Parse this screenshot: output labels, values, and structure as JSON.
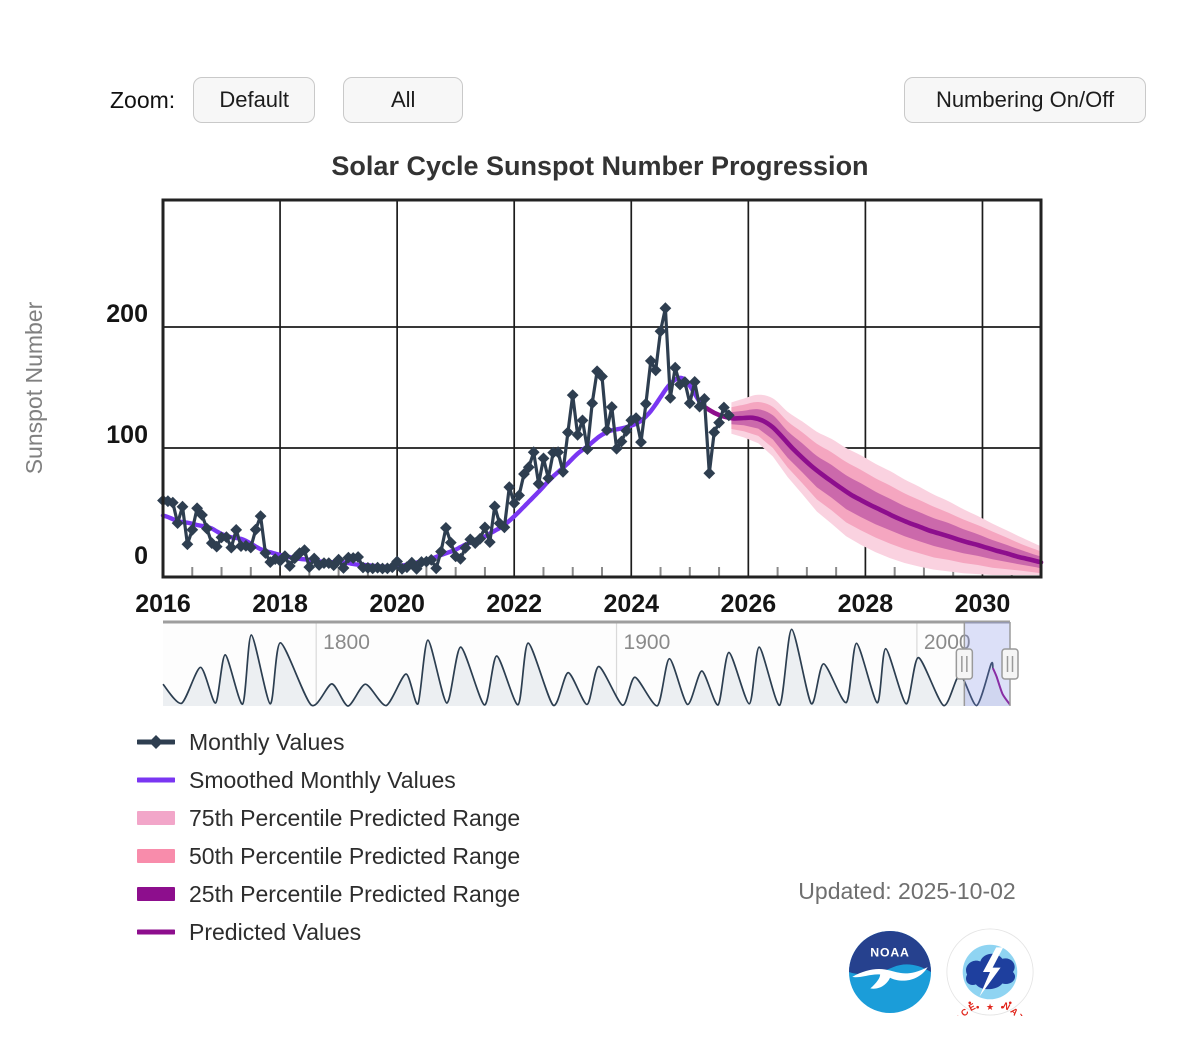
{
  "controls": {
    "zoom_label": "Zoom:",
    "zoom_buttons": [
      "Default",
      "All"
    ],
    "numbering_button": "Numbering On/Off"
  },
  "chart_data": {
    "type": "line",
    "title": "Solar Cycle Sunspot Number Progression",
    "xlabel": "",
    "ylabel": "Sunspot Number",
    "xlim": [
      2016,
      2031
    ],
    "ylim": [
      -7,
      305
    ],
    "x_ticks": [
      2016,
      2018,
      2020,
      2022,
      2024,
      2026,
      2028,
      2030
    ],
    "y_ticks": [
      0,
      100,
      200
    ],
    "minor_tick_step_years": 0.5,
    "grid": true,
    "series": {
      "monthly": {
        "name": "Monthly Values",
        "color": "#2e3e50",
        "start": 2016.0,
        "step_years": 0.0833333,
        "values": [
          56.6,
          56,
          54.9,
          37.9,
          51.5,
          20.5,
          32.4,
          50.2,
          44.6,
          33.4,
          21.4,
          18.5,
          26.1,
          26.4,
          17.7,
          32.3,
          18.9,
          19.2,
          17.8,
          32.6,
          43.7,
          13.2,
          5.7,
          8.2,
          6.8,
          10.7,
          2.5,
          8.9,
          13.1,
          15.6,
          1.6,
          8.7,
          3.3,
          4.9,
          4.9,
          3.1,
          7.7,
          0.8,
          9.4,
          9.1,
          9.9,
          1.2,
          0.9,
          0.5,
          1.1,
          0.4,
          0.5,
          1.5,
          6.2,
          0.2,
          1.5,
          5.2,
          0.2,
          5.8,
          6.1,
          7.5,
          0.6,
          14.4,
          34,
          21.8,
          10.4,
          8.4,
          17.4,
          24.5,
          21.4,
          25,
          34.4,
          22.2,
          51.7,
          37.7,
          34.5,
          67.7,
          54.3,
          60.8,
          78.5,
          84.1,
          96.5,
          70.5,
          91.4,
          75,
          96.2,
          96.5,
          80.3,
          112.9,
          143.7,
          110.9,
          122.8,
          99.1,
          137,
          163.4,
          159.1,
          114.8,
          133.9,
          99.4,
          105.4,
          114.2,
          123,
          124.7,
          104.9,
          136.5,
          172,
          164.2,
          196.5,
          215.5,
          141.4,
          166.4,
          152.5,
          154.5,
          137,
          154.6,
          134.2,
          140.6,
          79.2,
          113,
          121,
          133.5,
          127
        ]
      },
      "smoothed": {
        "name": "Smoothed Monthly Values",
        "color": "#7a36f2",
        "start": 2016.0,
        "step_years": 0.0833333,
        "values": [
          44.2,
          43,
          41.2,
          39.4,
          38.8,
          38.3,
          37.4,
          36.4,
          35.6,
          34.8,
          33.5,
          31.1,
          28.9,
          27.4,
          26.2,
          25.6,
          24.9,
          23.2,
          21,
          18.6,
          16.4,
          14.8,
          13.8,
          12.7,
          11.6,
          10.6,
          9.8,
          8.9,
          8.4,
          8,
          7.6,
          7,
          6.4,
          6,
          5.7,
          5.6,
          5.6,
          5.4,
          4.9,
          4.1,
          3.5,
          3.3,
          3.1,
          2.7,
          2.3,
          2,
          1.8,
          1.8,
          2.1,
          2.8,
          3.6,
          4.5,
          5.4,
          6.1,
          7,
          8.3,
          10,
          11.6,
          13,
          14.4,
          16,
          18.1,
          20.1,
          21.7,
          23,
          24.6,
          26.8,
          29.3,
          31.6,
          33.8,
          36.6,
          39.8,
          43.5,
          47.4,
          51.5,
          55.6,
          59.7,
          63.8,
          68.1,
          72.5,
          76.5,
          80.2,
          83.6,
          87.3,
          91.4,
          95.3,
          98.4,
          101.3,
          104.7,
          108.1,
          110.9,
          113.1,
          114.6,
          115.4,
          116.2,
          117.2,
          118.5,
          120.2,
          122.5,
          126,
          130.5,
          136,
          142,
          148,
          153,
          156.5,
          158,
          156.5,
          151.5,
          145,
          138.5,
          134
        ]
      },
      "predicted": {
        "name": "Predicted Values",
        "color": "#8d0e8d",
        "points": [
          [
            2025.25,
            134
          ],
          [
            2025.42,
            129
          ],
          [
            2025.58,
            126
          ],
          [
            2025.75,
            124.5
          ],
          [
            2025.92,
            124.8
          ],
          [
            2026.08,
            125
          ],
          [
            2026.25,
            122.5
          ],
          [
            2026.42,
            117
          ],
          [
            2026.58,
            109
          ],
          [
            2026.75,
            100
          ],
          [
            2026.92,
            92
          ],
          [
            2027.08,
            85
          ],
          [
            2027.25,
            78.5
          ],
          [
            2027.42,
            72.5
          ],
          [
            2027.58,
            67
          ],
          [
            2027.75,
            61.5
          ],
          [
            2027.92,
            57
          ],
          [
            2028.08,
            53
          ],
          [
            2028.25,
            49
          ],
          [
            2028.42,
            45
          ],
          [
            2028.58,
            41.5
          ],
          [
            2028.75,
            38
          ],
          [
            2028.92,
            35
          ],
          [
            2029.08,
            32
          ],
          [
            2029.25,
            29.5
          ],
          [
            2029.42,
            27
          ],
          [
            2029.58,
            24.5
          ],
          [
            2029.75,
            22
          ],
          [
            2029.92,
            19.8
          ],
          [
            2030.08,
            17.5
          ],
          [
            2030.25,
            15
          ],
          [
            2030.42,
            12.8
          ],
          [
            2030.58,
            10.5
          ],
          [
            2030.75,
            8.5
          ],
          [
            2030.92,
            6.5
          ],
          [
            2031,
            5.5
          ]
        ]
      },
      "bands": {
        "x": [
          2025.71,
          2025.92,
          2026.17,
          2026.42,
          2026.67,
          2026.92,
          2027.17,
          2027.42,
          2027.67,
          2027.92,
          2028.17,
          2028.42,
          2028.67,
          2028.92,
          2029.17,
          2029.42,
          2029.67,
          2029.92,
          2030.17,
          2030.42,
          2030.67,
          2030.92,
          2031
        ],
        "median": [
          124.7,
          124.8,
          124,
          117,
          103,
          92,
          80.5,
          72.5,
          63.5,
          57,
          50.5,
          45,
          39.5,
          35,
          30.5,
          27,
          23,
          19.8,
          16,
          12.8,
          9.5,
          6.5,
          5.5
        ],
        "p25": {
          "name": "25th Percentile Predicted Range",
          "fill": "rgba(141,14,141,0.40)",
          "halfwidth": [
            5,
            6,
            8,
            10,
            11,
            12,
            13,
            13.5,
            14,
            14,
            13.5,
            13,
            12.5,
            12,
            11.5,
            11,
            10,
            9,
            8,
            7,
            6,
            5,
            5
          ]
        },
        "p50": {
          "name": "50th Percentile Predicted Range",
          "fill": "#f5a6c0",
          "halfwidth": [
            9,
            11,
            14,
            17,
            19,
            21,
            23,
            24,
            25,
            25,
            24.5,
            24,
            23,
            22,
            21,
            19.5,
            18,
            16.5,
            15,
            13,
            11,
            9.5,
            9
          ]
        },
        "p75": {
          "name": "75th Percentile Predicted Range",
          "fill": "#fad2e0",
          "halfwidth": [
            13,
            16,
            20,
            24,
            27,
            30,
            33,
            35,
            36.5,
            37,
            36.5,
            36,
            34.5,
            33,
            31,
            29,
            26.5,
            24,
            21.5,
            19,
            16.5,
            14,
            13.5
          ]
        },
        "lower_clamp": -5
      }
    },
    "navigator": {
      "xlim": [
        1749,
        2031
      ],
      "grid_years": [
        1800,
        1900,
        2000
      ],
      "grid_labels": [
        "1800",
        "1900",
        "2000"
      ],
      "selection": [
        2015.8,
        2031
      ],
      "prediction_from": 2025.3,
      "line_color": "#2c3e50",
      "prediction_color": "#8d0e8d",
      "fill_color": "#eceff2",
      "keypoints": [
        [
          1749,
          81
        ],
        [
          1755.2,
          10
        ],
        [
          1761.5,
          144
        ],
        [
          1766.5,
          11
        ],
        [
          1769.7,
          190
        ],
        [
          1775.5,
          7
        ],
        [
          1778.4,
          264
        ],
        [
          1784.7,
          8
        ],
        [
          1788.1,
          235
        ],
        [
          1798.3,
          4
        ],
        [
          1805.2,
          82
        ],
        [
          1810.6,
          0
        ],
        [
          1816.4,
          81
        ],
        [
          1823.3,
          2
        ],
        [
          1829.9,
          119
        ],
        [
          1833.9,
          8
        ],
        [
          1837.2,
          245
        ],
        [
          1843.5,
          11
        ],
        [
          1848.1,
          219
        ],
        [
          1856,
          4
        ],
        [
          1860.1,
          186
        ],
        [
          1867.2,
          5
        ],
        [
          1870.6,
          234
        ],
        [
          1878.9,
          3
        ],
        [
          1883.9,
          124
        ],
        [
          1890.2,
          6
        ],
        [
          1894.1,
          147
        ],
        [
          1902,
          3
        ],
        [
          1906.1,
          107
        ],
        [
          1913.6,
          1
        ],
        [
          1917.6,
          176
        ],
        [
          1923.6,
          6
        ],
        [
          1928.4,
          130
        ],
        [
          1933.8,
          4
        ],
        [
          1937.4,
          199
        ],
        [
          1944.2,
          8
        ],
        [
          1947.5,
          219
        ],
        [
          1954.3,
          3
        ],
        [
          1958.3,
          285
        ],
        [
          1964.8,
          9
        ],
        [
          1968.9,
          157
        ],
        [
          1976.5,
          13
        ],
        [
          1979.9,
          233
        ],
        [
          1986.8,
          12
        ],
        [
          1989.6,
          213
        ],
        [
          1996.4,
          8
        ],
        [
          2000.5,
          180
        ],
        [
          2008.9,
          2
        ],
        [
          2014.3,
          116
        ],
        [
          2019.9,
          2
        ],
        [
          2024.7,
          156
        ],
        [
          2025.3,
          141
        ],
        [
          2026.5,
          110
        ],
        [
          2028.5,
          45
        ],
        [
          2031,
          5
        ]
      ]
    }
  },
  "legend": {
    "items": [
      {
        "label": "Monthly Values",
        "type": "line-diamond",
        "color": "#2e3e50"
      },
      {
        "label": "Smoothed Monthly Values",
        "type": "line",
        "color": "#7a36f2"
      },
      {
        "label": "75th Percentile Predicted Range",
        "type": "band",
        "color": "#f2a6c9"
      },
      {
        "label": "50th Percentile Predicted Range",
        "type": "band",
        "color": "#f88cab"
      },
      {
        "label": "25th Percentile Predicted Range",
        "type": "band",
        "color": "#8d0e8d"
      },
      {
        "label": "Predicted Values",
        "type": "line",
        "color": "#8d0e8d"
      }
    ]
  },
  "footer": {
    "updated": "Updated: 2025-10-02"
  },
  "logos": {
    "noaa": {
      "label": "NOAA",
      "top_color": "#26418e",
      "bottom_color": "#1b9dd9"
    },
    "nws": {
      "ring_text": "NATIONAL WEATHER SERVICE",
      "ring_color": "#e1251b",
      "globe_color": "#8fd4f2",
      "cloud_color": "#1e3f9e"
    }
  }
}
